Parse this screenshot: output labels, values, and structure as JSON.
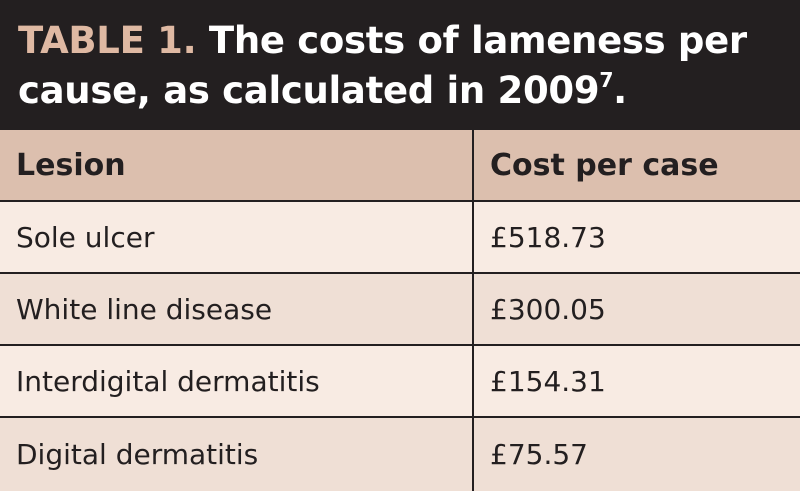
{
  "title": {
    "label": "TABLE 1.",
    "text": " The costs of lameness per cause, as calculated in 2009",
    "superscript": "7",
    "end": "."
  },
  "table": {
    "columns": [
      "Lesion",
      "Cost per case"
    ],
    "rows": [
      {
        "lesion": "Sole ulcer",
        "cost": "£518.73"
      },
      {
        "lesion": "White line disease",
        "cost": "£300.05"
      },
      {
        "lesion": "Interdigital dermatitis",
        "cost": "£154.31"
      },
      {
        "lesion": "Digital dermatitis",
        "cost": "£75.57"
      }
    ]
  },
  "colors": {
    "background": "#231f20",
    "label_accent": "#dfb9a3",
    "header_fill": "#dcbfae",
    "row_light": "#f8ebe3",
    "row_dark": "#efdfd5"
  }
}
